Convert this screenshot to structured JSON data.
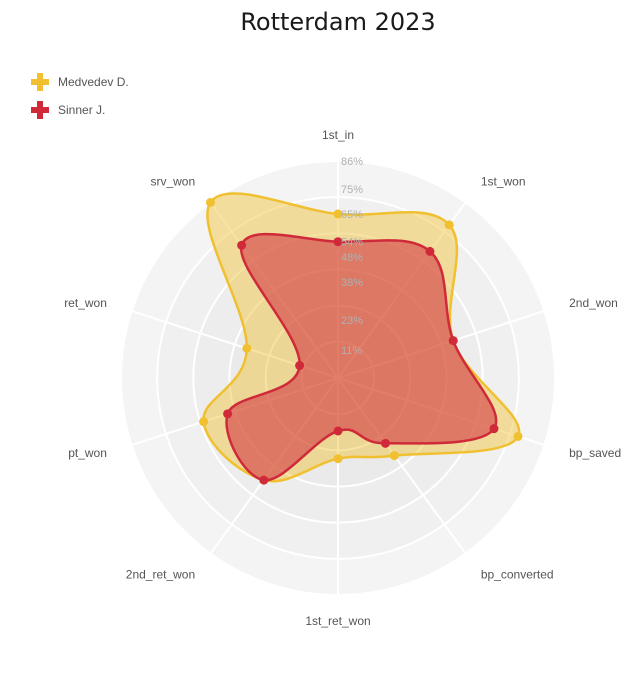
{
  "chart_data": {
    "type": "radar",
    "title": "Rotterdam 2023",
    "axes": [
      "1st_in",
      "1st_won",
      "2nd_won",
      "bp_saved",
      "bp_converted",
      "1st_ret_won",
      "2nd_ret_won",
      "pt_won",
      "ret_won",
      "srv_won"
    ],
    "ticks": [
      "11%",
      "23%",
      "38%",
      "48%",
      "54%",
      "65%",
      "75%",
      "86%"
    ],
    "rmax": 86,
    "series": [
      {
        "name": "Medvedev D.",
        "color": "#f0c030",
        "values": [
          65,
          75,
          48,
          75,
          38,
          32,
          50,
          56,
          38,
          86
        ]
      },
      {
        "name": "Sinner J.",
        "color": "#d02a3a",
        "values": [
          54,
          62,
          48,
          65,
          32,
          21,
          50,
          46,
          16,
          65
        ]
      }
    ],
    "legend": {
      "position": "top-left"
    }
  }
}
